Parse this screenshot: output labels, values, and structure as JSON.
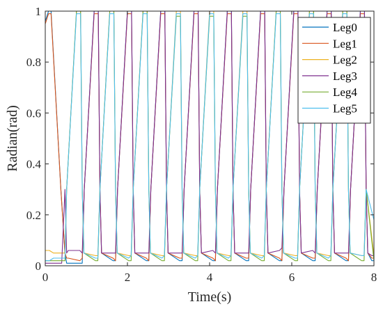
{
  "chart_data": {
    "type": "line",
    "title": "",
    "xlabel": "Time(s)",
    "ylabel": "Radian(rad)",
    "xlim": [
      0,
      8
    ],
    "ylim": [
      0,
      1
    ],
    "xticks": [
      0,
      2,
      4,
      6,
      8
    ],
    "xtick_labels": [
      "0",
      "2",
      "4",
      "6",
      "8"
    ],
    "yticks": [
      0,
      0.2,
      0.4,
      0.6,
      0.8,
      1
    ],
    "ytick_labels": [
      "0",
      "0.2",
      "0.4",
      "0.6",
      "0.8",
      "1"
    ],
    "grid": false,
    "legend_position": "top-right",
    "series": [
      {
        "name": "Leg0",
        "color": "#0072BD",
        "x": [
          0,
          0.08,
          0.14,
          0.38,
          0.48,
          0.52,
          0.56,
          0.84,
          0.9,
          0.95,
          1.19,
          1.29,
          1.33,
          1.37,
          1.65,
          1.71,
          1.76,
          2.0,
          2.1,
          2.14,
          2.18,
          2.46,
          2.52,
          2.57,
          2.81,
          2.91,
          2.95,
          2.99,
          3.27,
          3.33,
          3.38,
          3.62,
          3.72,
          3.76,
          3.8,
          4.08,
          4.14,
          4.19,
          4.43,
          4.53,
          4.57,
          4.61,
          4.89,
          4.95,
          5.0,
          5.24,
          5.34,
          5.38,
          5.42,
          5.7,
          5.76,
          5.81,
          6.05,
          6.15,
          6.19,
          6.23,
          6.51,
          6.57,
          6.62,
          6.86,
          6.96,
          7.0,
          7.04,
          7.32,
          7.38,
          7.43,
          7.67,
          7.77,
          7.81,
          7.85,
          7.95,
          8.0
        ],
        "y": [
          0.96,
          1.0,
          1.0,
          0.3,
          0.05,
          0.01,
          0.01,
          0.01,
          0.01,
          0.3,
          1.0,
          1.0,
          0.3,
          0.05,
          0.02,
          0.02,
          0.3,
          1.0,
          1.0,
          0.3,
          0.05,
          0.02,
          0.02,
          0.3,
          1.0,
          1.0,
          0.3,
          0.05,
          0.02,
          0.02,
          0.3,
          1.0,
          1.0,
          0.3,
          0.05,
          0.02,
          0.02,
          0.3,
          1.0,
          1.0,
          0.3,
          0.05,
          0.02,
          0.02,
          0.3,
          1.0,
          1.0,
          0.3,
          0.05,
          0.02,
          0.02,
          0.3,
          1.0,
          1.0,
          0.3,
          0.05,
          0.02,
          0.02,
          0.3,
          1.0,
          1.0,
          0.3,
          0.05,
          0.02,
          0.02,
          0.3,
          1.0,
          1.0,
          0.3,
          0.05,
          0.02,
          0.02
        ]
      },
      {
        "name": "Leg1",
        "color": "#D95319",
        "x": [
          0,
          0.08,
          0.14,
          0.38,
          0.48,
          0.52,
          0.56,
          0.84,
          0.9,
          0.95,
          1.19,
          1.29,
          1.33,
          1.37,
          1.65,
          1.71,
          1.76,
          2.0,
          2.1,
          2.14,
          2.18,
          2.46,
          2.52,
          2.57,
          2.81,
          2.91,
          2.95,
          2.99,
          3.27,
          3.33,
          3.38,
          3.62,
          3.72,
          3.76,
          3.8,
          4.08,
          4.14,
          4.19,
          4.43,
          4.53,
          4.57,
          4.61,
          4.89,
          4.95,
          5.0,
          5.24,
          5.34,
          5.38,
          5.42,
          5.7,
          5.76,
          5.81,
          6.05,
          6.15,
          6.19,
          6.23,
          6.51,
          6.57,
          6.62,
          6.86,
          6.96,
          7.0,
          7.04,
          7.32,
          7.38,
          7.43,
          7.67,
          7.77,
          7.81,
          7.85,
          7.95,
          8.0
        ],
        "y": [
          0.95,
          0.99,
          0.99,
          0.3,
          0.05,
          0.03,
          0.03,
          0.02,
          0.03,
          0.3,
          0.99,
          0.99,
          0.3,
          0.05,
          0.03,
          0.02,
          0.3,
          0.99,
          0.99,
          0.3,
          0.05,
          0.03,
          0.02,
          0.3,
          0.99,
          0.99,
          0.3,
          0.05,
          0.03,
          0.03,
          0.3,
          0.99,
          0.99,
          0.3,
          0.05,
          0.03,
          0.02,
          0.3,
          0.99,
          0.99,
          0.3,
          0.05,
          0.03,
          0.03,
          0.3,
          0.99,
          0.99,
          0.3,
          0.05,
          0.03,
          0.02,
          0.3,
          0.99,
          0.99,
          0.3,
          0.05,
          0.03,
          0.03,
          0.3,
          0.99,
          0.99,
          0.3,
          0.05,
          0.03,
          0.02,
          0.3,
          0.99,
          0.99,
          0.3,
          0.05,
          0.03,
          0.03
        ]
      },
      {
        "name": "Leg2",
        "color": "#EDB120",
        "x": [
          0,
          0.1,
          0.2,
          0.3,
          0.4,
          0.48,
          0.52,
          0.76,
          0.86,
          0.9,
          0.94,
          1.22,
          1.28,
          1.33,
          1.57,
          1.67,
          1.71,
          1.75,
          2.03,
          2.09,
          2.14,
          2.38,
          2.48,
          2.52,
          2.56,
          2.84,
          2.9,
          2.95,
          3.19,
          3.29,
          3.33,
          3.37,
          3.65,
          3.71,
          3.76,
          4.0,
          4.1,
          4.14,
          4.18,
          4.46,
          4.52,
          4.57,
          4.81,
          4.91,
          4.95,
          4.99,
          5.27,
          5.33,
          5.38,
          5.62,
          5.72,
          5.76,
          5.8,
          6.08,
          6.14,
          6.19,
          6.43,
          6.53,
          6.57,
          6.61,
          6.89,
          6.95,
          7.0,
          7.24,
          7.34,
          7.38,
          7.42,
          7.7,
          7.76,
          7.81,
          8.0
        ],
        "y": [
          0.06,
          0.06,
          0.05,
          0.05,
          0.05,
          0.05,
          0.3,
          1.0,
          1.0,
          0.3,
          0.05,
          0.04,
          0.04,
          0.3,
          1.0,
          1.0,
          0.3,
          0.05,
          0.04,
          0.04,
          0.3,
          1.0,
          1.0,
          0.3,
          0.05,
          0.04,
          0.04,
          0.3,
          1.0,
          1.0,
          0.3,
          0.05,
          0.04,
          0.04,
          0.3,
          1.0,
          1.0,
          0.3,
          0.05,
          0.04,
          0.04,
          0.3,
          1.0,
          1.0,
          0.3,
          0.05,
          0.04,
          0.04,
          0.3,
          1.0,
          1.0,
          0.3,
          0.05,
          0.04,
          0.04,
          0.3,
          1.0,
          1.0,
          0.3,
          0.05,
          0.04,
          0.04,
          0.3,
          1.0,
          1.0,
          0.3,
          0.05,
          0.04,
          0.04,
          0.3,
          0.04
        ]
      },
      {
        "name": "Leg3",
        "color": "#7E2F8E",
        "x": [
          0,
          0.1,
          0.2,
          0.3,
          0.4,
          0.48,
          0.52,
          0.56,
          0.84,
          0.9,
          0.95,
          1.19,
          1.29,
          1.33,
          1.37,
          1.65,
          1.71,
          1.76,
          2.0,
          2.1,
          2.14,
          2.18,
          2.46,
          2.52,
          2.57,
          2.81,
          2.91,
          2.95,
          2.99,
          3.27,
          3.33,
          3.38,
          3.62,
          3.72,
          3.76,
          3.8,
          4.08,
          4.14,
          4.19,
          4.43,
          4.53,
          4.57,
          4.61,
          4.89,
          4.95,
          5.0,
          5.24,
          5.34,
          5.38,
          5.42,
          5.7,
          5.76,
          5.81,
          6.05,
          6.15,
          6.19,
          6.23,
          6.51,
          6.57,
          6.62,
          6.86,
          6.96,
          7.0,
          7.04,
          7.32,
          7.38,
          7.43,
          7.67,
          7.77,
          7.81,
          7.85,
          7.95,
          8.0
        ],
        "y": [
          0.01,
          0.01,
          0.01,
          0.01,
          0.01,
          0.3,
          0.05,
          0.06,
          0.06,
          0.05,
          0.3,
          1.0,
          1.0,
          0.3,
          0.05,
          0.05,
          0.05,
          0.3,
          1.0,
          1.0,
          0.3,
          0.05,
          0.05,
          0.05,
          0.3,
          1.0,
          1.0,
          0.3,
          0.05,
          0.05,
          0.05,
          0.3,
          1.0,
          1.0,
          0.3,
          0.05,
          0.06,
          0.05,
          0.3,
          1.0,
          1.0,
          0.3,
          0.05,
          0.05,
          0.05,
          0.3,
          1.0,
          1.0,
          0.3,
          0.05,
          0.06,
          0.07,
          0.3,
          1.0,
          1.0,
          0.3,
          0.05,
          0.06,
          0.05,
          0.3,
          1.0,
          1.0,
          0.3,
          0.05,
          0.05,
          0.05,
          0.3,
          1.0,
          1.0,
          0.3,
          0.05,
          0.04,
          0.04
        ]
      },
      {
        "name": "Leg4",
        "color": "#77AC30",
        "x": [
          0,
          0.1,
          0.2,
          0.3,
          0.4,
          0.48,
          0.52,
          0.76,
          0.86,
          0.9,
          0.94,
          1.22,
          1.28,
          1.33,
          1.57,
          1.67,
          1.71,
          1.75,
          2.03,
          2.09,
          2.14,
          2.38,
          2.48,
          2.52,
          2.56,
          2.84,
          2.9,
          2.95,
          3.19,
          3.29,
          3.33,
          3.37,
          3.65,
          3.71,
          3.76,
          4.0,
          4.1,
          4.14,
          4.18,
          4.46,
          4.52,
          4.57,
          4.81,
          4.91,
          4.95,
          4.99,
          5.27,
          5.33,
          5.38,
          5.62,
          5.72,
          5.76,
          5.8,
          6.08,
          6.14,
          6.19,
          6.43,
          6.53,
          6.57,
          6.61,
          6.89,
          6.95,
          7.0,
          7.24,
          7.34,
          7.38,
          7.42,
          7.7,
          7.76,
          7.81,
          8.0
        ],
        "y": [
          0.02,
          0.02,
          0.02,
          0.02,
          0.02,
          0.02,
          0.3,
          1.0,
          1.0,
          0.3,
          0.05,
          0.02,
          0.02,
          0.3,
          1.0,
          1.0,
          0.3,
          0.05,
          0.02,
          0.02,
          0.3,
          1.0,
          1.0,
          0.3,
          0.05,
          0.02,
          0.02,
          0.3,
          0.98,
          0.98,
          0.3,
          0.05,
          0.02,
          0.02,
          0.3,
          0.98,
          0.98,
          0.3,
          0.05,
          0.02,
          0.02,
          0.3,
          0.98,
          0.98,
          0.3,
          0.05,
          0.02,
          0.02,
          0.3,
          1.0,
          1.0,
          0.3,
          0.05,
          0.02,
          0.02,
          0.3,
          1.0,
          1.0,
          0.3,
          0.05,
          0.02,
          0.02,
          0.3,
          1.0,
          1.0,
          0.3,
          0.05,
          0.02,
          0.02,
          0.3,
          0.02
        ]
      },
      {
        "name": "Leg5",
        "color": "#4DBEEE",
        "x": [
          0,
          0.1,
          0.2,
          0.3,
          0.4,
          0.48,
          0.52,
          0.76,
          0.86,
          0.9,
          0.94,
          1.22,
          1.28,
          1.33,
          1.57,
          1.67,
          1.71,
          1.75,
          2.03,
          2.09,
          2.14,
          2.38,
          2.48,
          2.52,
          2.56,
          2.84,
          2.9,
          2.95,
          3.19,
          3.29,
          3.33,
          3.37,
          3.65,
          3.71,
          3.76,
          4.0,
          4.1,
          4.14,
          4.18,
          4.46,
          4.52,
          4.57,
          4.81,
          4.91,
          4.95,
          4.99,
          5.27,
          5.33,
          5.38,
          5.62,
          5.72,
          5.76,
          5.8,
          6.08,
          6.14,
          6.19,
          6.43,
          6.53,
          6.57,
          6.61,
          6.89,
          6.95,
          7.0,
          7.24,
          7.34,
          7.38,
          7.42,
          7.7,
          7.76,
          7.81,
          8.0
        ],
        "y": [
          0.02,
          0.02,
          0.03,
          0.03,
          0.03,
          0.03,
          0.3,
          0.99,
          0.99,
          0.3,
          0.05,
          0.03,
          0.03,
          0.3,
          0.99,
          0.99,
          0.3,
          0.05,
          0.03,
          0.04,
          0.3,
          0.99,
          0.99,
          0.3,
          0.05,
          0.03,
          0.04,
          0.3,
          0.99,
          0.99,
          0.3,
          0.05,
          0.03,
          0.04,
          0.3,
          0.99,
          0.99,
          0.3,
          0.05,
          0.03,
          0.04,
          0.3,
          0.99,
          0.99,
          0.3,
          0.05,
          0.03,
          0.04,
          0.3,
          0.99,
          0.99,
          0.3,
          0.05,
          0.03,
          0.03,
          0.3,
          0.99,
          0.99,
          0.3,
          0.05,
          0.03,
          0.04,
          0.3,
          0.99,
          0.99,
          0.3,
          0.05,
          0.04,
          0.04,
          0.3,
          0.18
        ]
      }
    ]
  }
}
